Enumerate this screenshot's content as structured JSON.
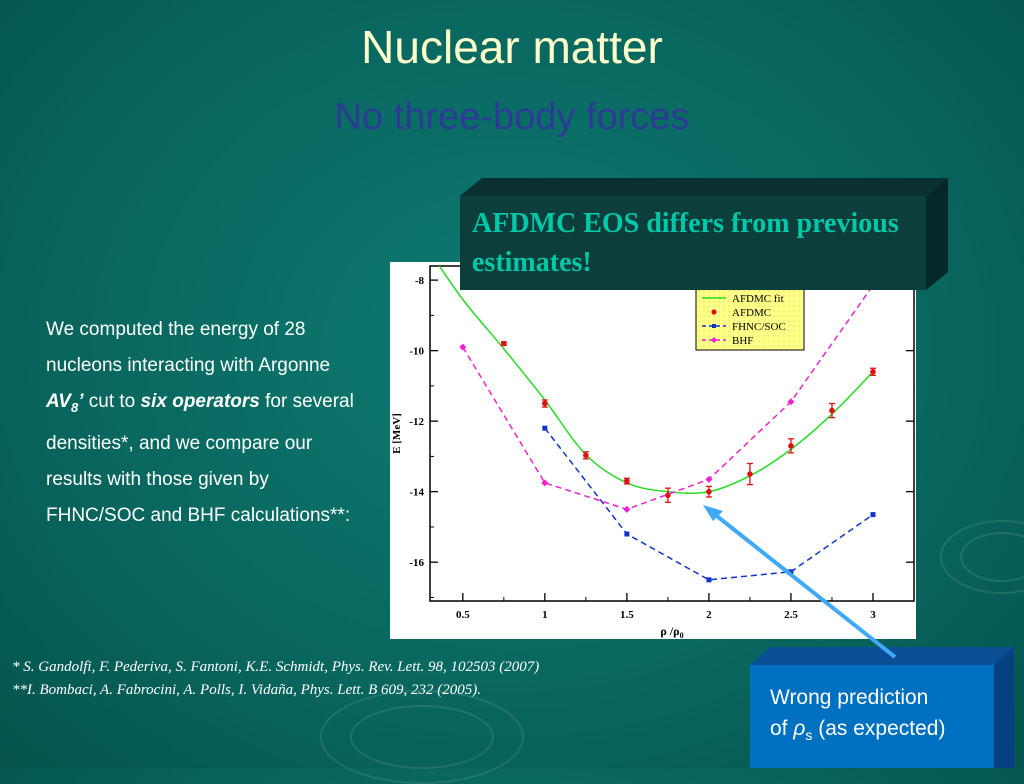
{
  "slide": {
    "title": "Nuclear matter",
    "subtitle": "No three-body forces"
  },
  "body": {
    "line1": "We computed the energy of 28 nucleons interacting with Argonne ",
    "av_main": "AV",
    "av_sub": "8",
    "av_prime": "’",
    "line2": " cut to ",
    "six_operators": "six operators",
    "line3": " for several densities*, and we compare our results with those given by FHNC/SOC and BHF calculations**:"
  },
  "callout": {
    "text": "AFDMC EOS differs from previous estimates!"
  },
  "references": [
    "* S. Gandolfi, F. Pederiva, S. Fantoni, K.E. Schmidt, Phys. Rev. Lett. 98, 102503 (2007)",
    "**I. Bombaci, A. Fabrocini, A. Polls, I. Vidaña, Phys. Lett. B 609, 232 (2005)."
  ],
  "wrong_box": {
    "line1": "Wrong prediction",
    "prefix": "of ",
    "symbol": "ρ",
    "sub": "s",
    "suffix": " (as expected)"
  },
  "colors": {
    "title": "#ffffcc",
    "subtitle": "#2b3b94",
    "callout_text": "#00c8a8",
    "callout_bg": "#0c3e3c",
    "wrong_bg": "#0070c0",
    "arrow": "#3fa9f5"
  },
  "chart_data": {
    "type": "line",
    "xlabel_main": "ρ /ρ",
    "xlabel_sub": "0",
    "ylabel": "E [MeV]",
    "xlim": [
      0.3,
      3.25
    ],
    "ylim": [
      -17.1,
      -7.6
    ],
    "xticks": [
      0.5,
      1,
      1.5,
      2,
      2.5,
      3
    ],
    "xtick_labels": [
      "0.5",
      "1",
      "1.5",
      "2",
      "2.5",
      "3"
    ],
    "yticks": [
      -16,
      -14,
      -12,
      -10,
      -8
    ],
    "ytick_labels": [
      "-16",
      "-14",
      "-12",
      "-10",
      "-8"
    ],
    "legend_position": "top-right",
    "series": [
      {
        "name": "AFDMC fit",
        "color": "#22dd22",
        "style": "solid",
        "x": [
          0.3,
          0.5,
          0.75,
          1.0,
          1.25,
          1.5,
          1.75,
          2.0,
          2.25,
          2.5,
          2.75,
          3.0
        ],
        "y": [
          -7.2,
          -8.55,
          -9.95,
          -11.4,
          -12.95,
          -13.75,
          -14.0,
          -14.0,
          -13.55,
          -12.8,
          -11.8,
          -10.6
        ]
      },
      {
        "name": "AFDMC",
        "color": "#dd1111",
        "style": "points",
        "x": [
          0.75,
          1.0,
          1.25,
          1.5,
          1.75,
          2.0,
          2.25,
          2.5,
          2.75,
          3.0
        ],
        "y": [
          -9.8,
          -11.5,
          -12.97,
          -13.7,
          -14.1,
          -14.0,
          -13.5,
          -12.7,
          -11.7,
          -10.6
        ],
        "err": [
          0.05,
          0.1,
          0.1,
          0.08,
          0.2,
          0.15,
          0.3,
          0.2,
          0.2,
          0.1
        ]
      },
      {
        "name": "FHNC/SOC",
        "color": "#1133cc",
        "style": "dashed",
        "x": [
          1.0,
          1.5,
          2.0,
          2.5,
          3.0
        ],
        "y": [
          -12.2,
          -15.2,
          -16.5,
          -16.27,
          -14.65
        ]
      },
      {
        "name": "BHF",
        "color": "#ee22cc",
        "style": "dashed",
        "x": [
          0.5,
          1.0,
          1.5,
          2.0,
          2.5,
          3.0
        ],
        "y": [
          -9.9,
          -13.75,
          -14.5,
          -13.65,
          -11.45,
          -8.15
        ]
      }
    ]
  }
}
